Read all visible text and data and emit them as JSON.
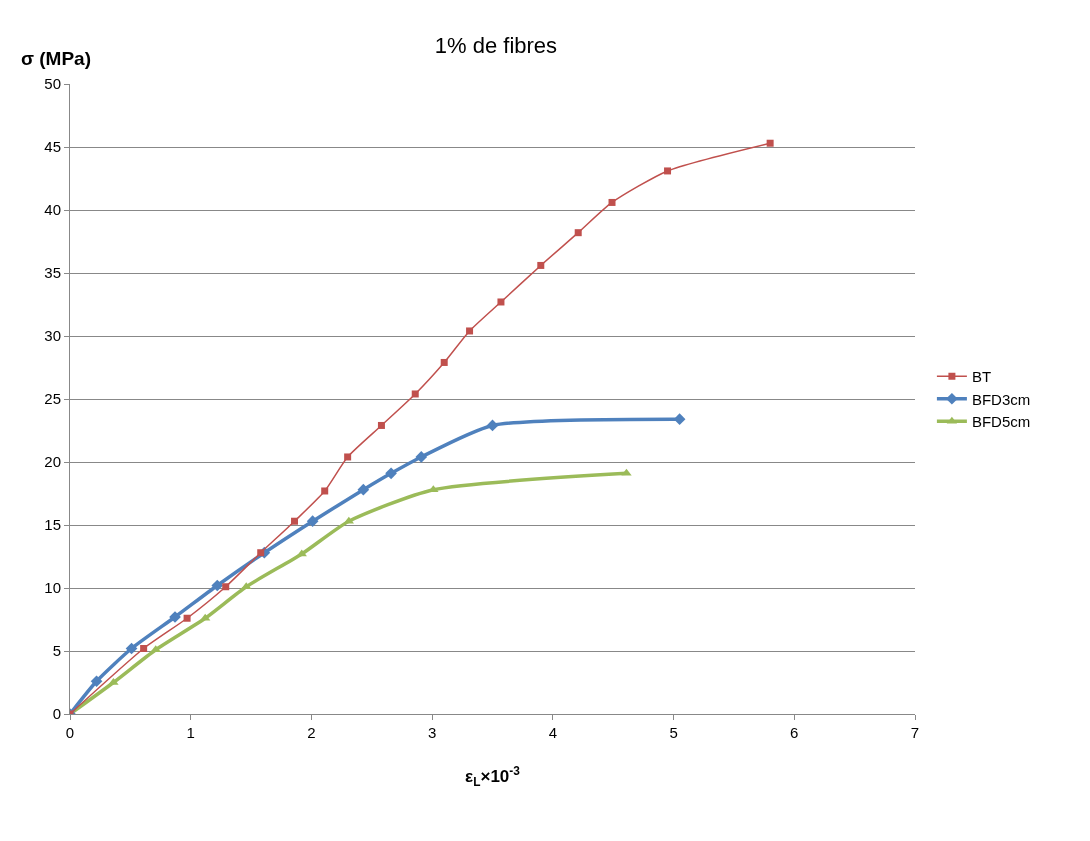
{
  "chart_data": {
    "type": "line",
    "title": "1% de fibres",
    "xlabel": "ε$_{L}$×10$^{-3}$",
    "ylabel": "σ (MPa)",
    "xlim": [
      0,
      7
    ],
    "xticks": [
      0,
      1,
      2,
      3,
      4,
      5,
      6,
      7
    ],
    "ylim": [
      0,
      50
    ],
    "yticks": [
      0,
      5,
      10,
      15,
      20,
      25,
      30,
      35,
      40,
      45,
      50
    ],
    "grid": "y",
    "legend": "right",
    "line_style": "solid",
    "series": [
      {
        "name": "BT",
        "color": "#c0504d",
        "marker": "square",
        "x": [
          0,
          0.61,
          0.97,
          1.29,
          1.58,
          1.86,
          2.11,
          2.3,
          2.58,
          2.86,
          3.1,
          3.31,
          3.57,
          3.9,
          4.21,
          4.49,
          4.95,
          5.8
        ],
        "values": [
          0,
          5.2,
          7.6,
          10.1,
          12.8,
          15.3,
          17.7,
          20.4,
          22.9,
          25.4,
          27.9,
          30.4,
          32.7,
          35.6,
          38.2,
          40.6,
          43.1,
          45.3
        ]
      },
      {
        "name": "BFD3cm",
        "color": "#4f81bd",
        "marker": "diamond",
        "x": [
          0,
          0.22,
          0.51,
          0.87,
          1.22,
          1.61,
          2.01,
          2.43,
          2.66,
          2.91,
          3.5,
          5.05
        ],
        "values": [
          0,
          2.6,
          5.2,
          7.7,
          10.2,
          12.8,
          15.3,
          17.8,
          19.1,
          20.4,
          22.9,
          23.4
        ]
      },
      {
        "name": "BFD5cm",
        "color": "#9bbb59",
        "marker": "triangle",
        "x": [
          0,
          0.36,
          0.71,
          1.12,
          1.46,
          1.92,
          2.31,
          3.01,
          4.61
        ],
        "values": [
          0,
          2.5,
          5.1,
          7.6,
          10.1,
          12.7,
          15.3,
          17.8,
          19.1
        ]
      }
    ]
  }
}
